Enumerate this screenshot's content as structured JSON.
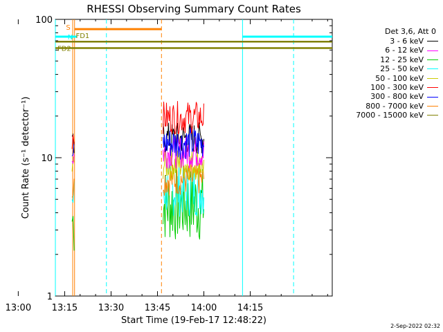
{
  "chart_data": {
    "type": "line",
    "title": "RHESSI Observing Summary Count Rates",
    "xlabel": "Start Time (19-Feb-17 12:48:22)",
    "ylabel": "Count Rate (s⁻¹ detector⁻¹)",
    "yscale": "log",
    "ylim": [
      1,
      100
    ],
    "xlim_minutes": [
      12.0,
      101.5
    ],
    "x_ticks": [
      {
        "minute": 0,
        "label": "13:00"
      },
      {
        "minute": 15,
        "label": "13:15"
      },
      {
        "minute": 30,
        "label": "13:30"
      },
      {
        "minute": 45,
        "label": "13:45"
      },
      {
        "minute": 60,
        "label": "14:00"
      },
      {
        "minute": 75,
        "label": "14:15"
      }
    ],
    "y_ticks": [
      {
        "value": 1,
        "label": "1"
      },
      {
        "value": 10,
        "label": "10"
      },
      {
        "value": 100,
        "label": "100"
      }
    ],
    "legend_title": "Det 3,6, Att 0",
    "series": [
      {
        "name": "3 - 6 keV",
        "color": "#000000",
        "burst1": 11.5,
        "burst2": 13.8
      },
      {
        "name": "6 - 12 keV",
        "color": "#ff00ff",
        "burst1": 10.5,
        "burst2": 11.0
      },
      {
        "name": "12 - 25 keV",
        "color": "#00cc00",
        "burst1": 3.5,
        "burst2": 4.6
      },
      {
        "name": "25 - 50 keV",
        "color": "#00ffff",
        "burst1": 5.0,
        "burst2": 5.9
      },
      {
        "name": "50 - 100 keV",
        "color": "#cccc00",
        "burst1": 8.2,
        "burst2": 9.0
      },
      {
        "name": "100 - 300 keV",
        "color": "#ff0000",
        "burst1": 14.5,
        "burst2": 19.5
      },
      {
        "name": "300 - 800 keV",
        "color": "#0000ff",
        "burst1": 10.5,
        "burst2": 12.8
      },
      {
        "name": "800 - 7000 keV",
        "color": "#ff8000",
        "burst1": 6.0,
        "burst2": 7.0
      },
      {
        "name": "7000 - 15000 keV",
        "color": "#808000",
        "burst1": null,
        "burst2": null
      }
    ],
    "bursts_minutes": [
      [
        17.4,
        18.2
      ],
      [
        46.8,
        60.2
      ]
    ],
    "flag_bars": [
      {
        "label": "N",
        "color": "#00ffff",
        "segments": [
          [
            12.0,
            19.0
          ],
          [
            72.5,
            101.5
          ]
        ],
        "value": 75
      },
      {
        "label": "S",
        "color": "#ff8000",
        "segments": [
          [
            18.2,
            46.3
          ]
        ],
        "value": 85
      },
      {
        "label": "FD1",
        "color": "#808000",
        "segments": [
          [
            12.0,
            101.5
          ]
        ],
        "value": 69
      },
      {
        "label": "FD2",
        "color": "#808000",
        "segments": [
          [
            12.0,
            101.5
          ]
        ],
        "value": 62
      }
    ],
    "vlines": [
      {
        "minute": 12.0,
        "color": "#00ffff",
        "style": "solid"
      },
      {
        "minute": 28.5,
        "color": "#00ffff",
        "style": "dashed"
      },
      {
        "minute": 17.6,
        "color": "#ff8000",
        "style": "solid"
      },
      {
        "minute": 18.2,
        "color": "#ff8000",
        "style": "solid"
      },
      {
        "minute": 46.3,
        "color": "#ff8000",
        "style": "dashed"
      },
      {
        "minute": 72.5,
        "color": "#00ffff",
        "style": "solid"
      },
      {
        "minute": 89.0,
        "color": "#00ffff",
        "style": "dashed"
      }
    ]
  },
  "footer": {
    "timestamp": "2-Sep-2022 02:32"
  }
}
